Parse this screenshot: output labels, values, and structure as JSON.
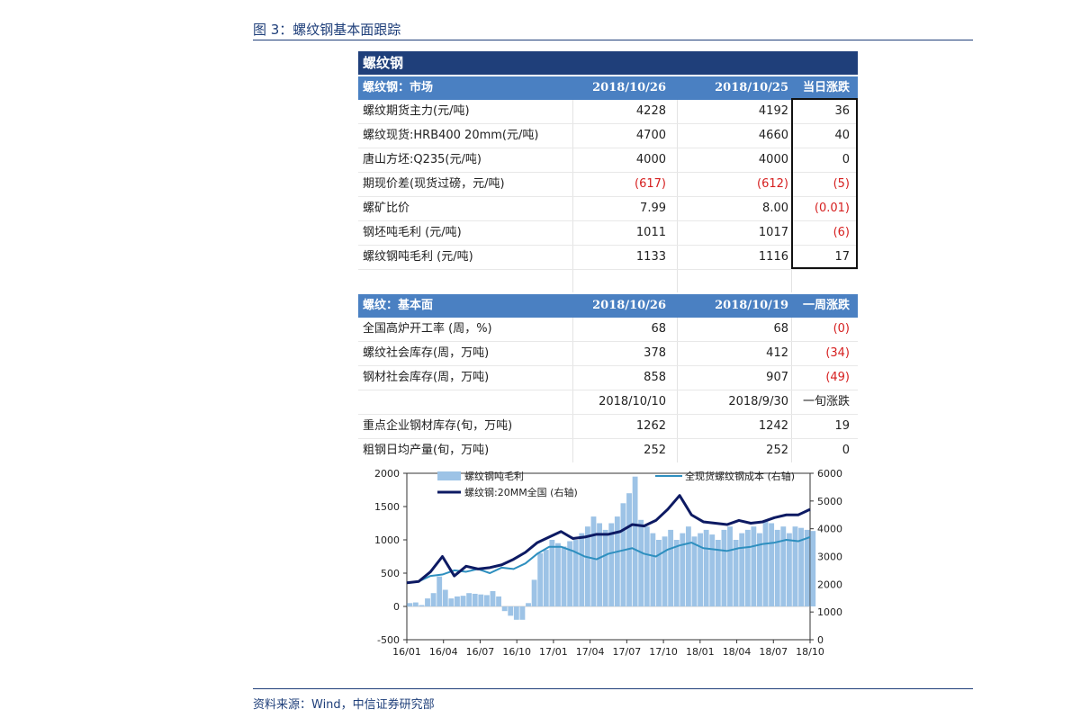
{
  "figure_title": "图 3：螺纹钢基本面跟踪",
  "source": "资料来源：Wind，中信证券研究部",
  "table1": {
    "title": "螺纹钢",
    "header": {
      "label": "螺纹钢：市场",
      "col1": "2018/10/26",
      "col2": "2018/10/25",
      "col3": "当日涨跌"
    },
    "rows": [
      {
        "label": "螺纹期货主力(元/吨)",
        "v1": "4228",
        "v2": "4192",
        "v3": "36"
      },
      {
        "label": "螺纹现货:HRB400 20mm(元/吨)",
        "v1": "4700",
        "v2": "4660",
        "v3": "40"
      },
      {
        "label": "唐山方坯:Q235(元/吨)",
        "v1": "4000",
        "v2": "4000",
        "v3": "0"
      },
      {
        "label": "期现价差(现货过磅，元/吨)",
        "v1": "(617)",
        "v2": "(612)",
        "v3": "(5)"
      },
      {
        "label": "螺矿比价",
        "v1": "7.99",
        "v2": "8.00",
        "v3": "(0.01)"
      },
      {
        "label": "钢坯吨毛利 (元/吨)",
        "v1": "1011",
        "v2": "1017",
        "v3": "(6)"
      },
      {
        "label": "螺纹钢吨毛利 (元/吨)",
        "v1": "1133",
        "v2": "1116",
        "v3": "17"
      }
    ]
  },
  "table2": {
    "header": {
      "label": "螺纹：基本面",
      "col1": "2018/10/26",
      "col2": "2018/10/19",
      "col3": "一周涨跌"
    },
    "rows": [
      {
        "label": "全国高炉开工率 (周，%)",
        "v1": "68",
        "v2": "68",
        "v3": "(0)"
      },
      {
        "label": "螺纹社会库存(周，万吨)",
        "v1": "378",
        "v2": "412",
        "v3": "(34)"
      },
      {
        "label": "钢材社会库存(周，万吨)",
        "v1": "858",
        "v2": "907",
        "v3": "(49)"
      }
    ],
    "subheader": {
      "col1": "2018/10/10",
      "col2": "2018/9/30",
      "col3": "一旬涨跌"
    },
    "rows2": [
      {
        "label": "重点企业钢材库存(旬，万吨)",
        "v1": "1262",
        "v2": "1242",
        "v3": "19"
      },
      {
        "label": "粗钢日均产量(旬，万吨)",
        "v1": "252",
        "v2": "252",
        "v3": "0"
      }
    ]
  },
  "chart_data": {
    "type": "bar+line",
    "x_ticks": [
      "16/01",
      "16/04",
      "16/07",
      "16/10",
      "17/01",
      "17/04",
      "17/07",
      "17/10",
      "18/01",
      "18/04",
      "18/07",
      "18/10"
    ],
    "y_left": {
      "ticks": [
        2000,
        1500,
        1000,
        500,
        0,
        -500
      ],
      "range": [
        -500,
        2000
      ]
    },
    "y_right": {
      "ticks": [
        6000,
        5000,
        4000,
        3000,
        2000,
        1000,
        0
      ],
      "range": [
        0,
        6000
      ]
    },
    "colors": {
      "bars": "#9dc3e6",
      "rebar_price": "#0d1a63",
      "cost": "#2e8fbf"
    },
    "legend": [
      {
        "name": "螺纹钢吨毛利",
        "kind": "bar"
      },
      {
        "name": "全现货螺纹钢成本 (右轴)",
        "kind": "line"
      },
      {
        "name": "螺纹钢:20MM全国 (右轴)",
        "kind": "line"
      }
    ],
    "series": [
      {
        "name": "螺纹钢吨毛利",
        "axis": "left",
        "kind": "bar",
        "x": [
          0,
          0.5,
          1,
          1.5,
          2,
          2.5,
          3,
          3.5,
          4,
          4.5,
          5,
          5.5,
          6,
          6.5,
          7,
          7.5,
          8,
          8.5,
          9,
          9.5,
          10,
          10.5,
          11,
          11.5,
          12,
          12.5,
          13,
          13.5,
          14,
          14.5,
          15,
          15.5,
          16,
          16.5,
          17,
          17.5,
          18,
          18.5,
          19,
          19.5,
          20,
          20.5,
          21,
          21.5,
          22,
          22.5,
          23,
          23.5,
          24,
          24.5,
          25,
          25.5,
          26,
          26.5,
          27,
          27.5,
          28,
          28.5,
          29,
          29.5,
          30,
          30.5,
          31,
          31.5,
          32,
          32.5,
          33,
          33.5,
          34
        ],
        "values": [
          50,
          60,
          20,
          120,
          200,
          450,
          250,
          120,
          150,
          160,
          200,
          190,
          180,
          170,
          230,
          150,
          -70,
          -140,
          -200,
          -200,
          50,
          400,
          800,
          850,
          1000,
          950,
          900,
          980,
          1000,
          1100,
          1200,
          1350,
          1250,
          1150,
          1250,
          1350,
          1550,
          1700,
          1950,
          1300,
          1200,
          1100,
          1000,
          1050,
          1150,
          1000,
          1100,
          1200,
          1050,
          1100,
          1150,
          1080,
          1000,
          1150,
          1200,
          1000,
          1100,
          1150,
          1200,
          1100,
          1300,
          1250,
          1150,
          1200,
          1100,
          1200,
          1180,
          1150,
          1133
        ]
      },
      {
        "name": "全现货螺纹钢成本 (右轴)",
        "axis": "right",
        "kind": "line",
        "x": [
          0,
          1,
          2,
          3,
          4,
          5,
          6,
          7,
          8,
          9,
          10,
          11,
          12,
          13,
          14,
          15,
          16,
          17,
          18,
          19,
          20,
          21,
          22,
          23,
          24,
          25,
          26,
          27,
          28,
          29,
          30,
          31,
          32,
          33,
          34
        ],
        "values": [
          2050,
          2100,
          2300,
          2350,
          2500,
          2450,
          2550,
          2400,
          2600,
          2550,
          2750,
          3100,
          3350,
          3350,
          3200,
          3000,
          2900,
          3100,
          3200,
          3300,
          3100,
          3000,
          3250,
          3400,
          3500,
          3300,
          3250,
          3200,
          3300,
          3350,
          3450,
          3500,
          3600,
          3550,
          3700
        ]
      },
      {
        "name": "螺纹钢:20MM全国 (右轴)",
        "axis": "right",
        "kind": "line",
        "x": [
          0,
          1,
          2,
          3,
          4,
          5,
          6,
          7,
          8,
          9,
          10,
          11,
          12,
          13,
          14,
          15,
          16,
          17,
          18,
          19,
          20,
          21,
          22,
          23,
          24,
          25,
          26,
          27,
          28,
          29,
          30,
          31,
          32,
          33,
          34
        ],
        "values": [
          2050,
          2100,
          2450,
          3000,
          2300,
          2650,
          2550,
          2600,
          2700,
          2900,
          3150,
          3500,
          3700,
          3900,
          3650,
          3700,
          3800,
          3800,
          3900,
          4150,
          4100,
          4300,
          4700,
          5200,
          4500,
          4250,
          4200,
          4150,
          4300,
          4200,
          4250,
          4400,
          4500,
          4500,
          4700
        ]
      }
    ]
  }
}
